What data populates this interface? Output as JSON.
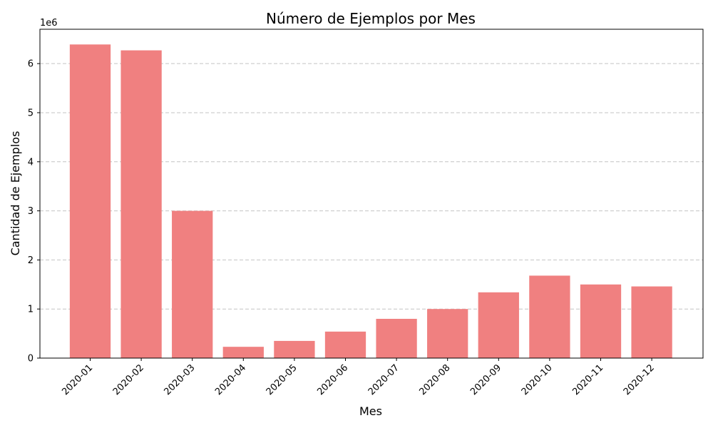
{
  "chart_data": {
    "type": "bar",
    "title": "Número de Ejemplos por Mes",
    "xlabel": "Mes",
    "ylabel": "Cantidad de Ejemplos",
    "y_scale_label": "1e6",
    "categories": [
      "2020-01",
      "2020-02",
      "2020-03",
      "2020-04",
      "2020-05",
      "2020-06",
      "2020-07",
      "2020-08",
      "2020-09",
      "2020-10",
      "2020-11",
      "2020-12"
    ],
    "values": [
      6390000,
      6270000,
      3000000,
      230000,
      350000,
      540000,
      800000,
      1000000,
      1340000,
      1680000,
      1500000,
      1460000
    ],
    "ylim": [
      0,
      6700000
    ],
    "yticks": [
      0,
      1,
      2,
      3,
      4,
      5,
      6
    ],
    "grid": "y-dashed",
    "bar_color": "#f08080"
  }
}
